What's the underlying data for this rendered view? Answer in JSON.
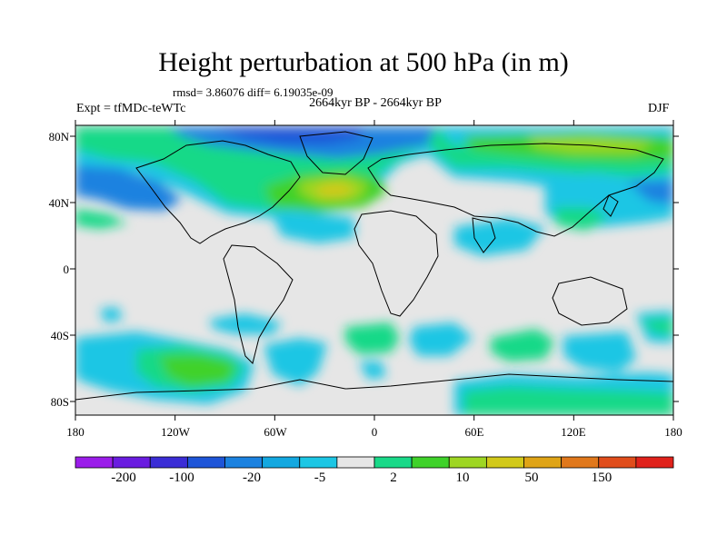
{
  "title": "Height perturbation at 500 hPa (in m)",
  "stats_line": "rmsd= 3.86076 diff= 6.19035e-09",
  "period": "2664kyr BP - 2664kyr BP",
  "experiment": "Expt = tfMDc-teWTc",
  "season": "DJF",
  "lat_labels": [
    "80N",
    "40N",
    "0",
    "40S",
    "80S"
  ],
  "lon_labels": [
    "180",
    "120W",
    "60W",
    "0",
    "60E",
    "120E",
    "180"
  ],
  "colorbar": {
    "colors": [
      "#9b1dea",
      "#6a1ce0",
      "#3b2dd6",
      "#1e55d8",
      "#1b82e0",
      "#13a8e0",
      "#1cc6e4",
      "#e6e6e6",
      "#19d988",
      "#3fd22a",
      "#9ed623",
      "#d2c91a",
      "#dfa417",
      "#e0781b",
      "#e04d1b",
      "#e0221b"
    ],
    "labels": [
      "-200",
      "-100",
      "-20",
      "-5",
      "2",
      "10",
      "50",
      "150"
    ]
  },
  "colors": {
    "background": "#e6e6e6",
    "coast": "#000000"
  }
}
